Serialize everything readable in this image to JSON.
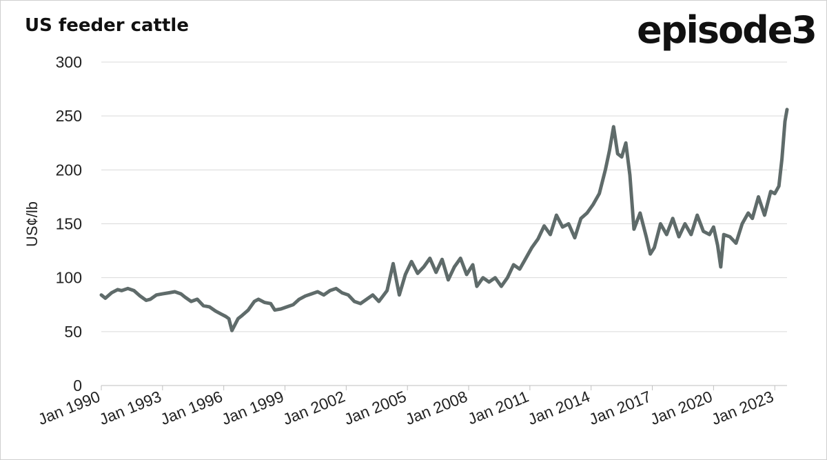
{
  "header": {
    "title": "US feeder cattle",
    "logo": "episode3"
  },
  "chart_data": {
    "type": "line",
    "title": "US feeder cattle",
    "xlabel": "",
    "ylabel": "US¢/lb",
    "xlim": [
      1990.0,
      2023.6
    ],
    "ylim": [
      0,
      300
    ],
    "yticks": [
      0,
      50,
      100,
      150,
      200,
      250,
      300
    ],
    "xtick_labels": [
      "Jan 1990",
      "Jan 1993",
      "Jan 1996",
      "Jan 1999",
      "Jan 2002",
      "Jan 2005",
      "Jan 2008",
      "Jan 2011",
      "Jan 2014",
      "Jan 2017",
      "Jan 2020",
      "Jan 2023"
    ],
    "xtick_years": [
      1990,
      1993,
      1996,
      1999,
      2002,
      2005,
      2008,
      2011,
      2014,
      2017,
      2020,
      2023
    ],
    "grid": "horizontal",
    "legend": "none",
    "series": [
      {
        "color": "#5f6b6a",
        "x": [
          1990.0,
          1990.2,
          1990.5,
          1990.8,
          1991.0,
          1991.3,
          1991.6,
          1991.9,
          1992.2,
          1992.4,
          1992.7,
          1993.0,
          1993.3,
          1993.6,
          1993.9,
          1994.1,
          1994.4,
          1994.7,
          1995.0,
          1995.3,
          1995.6,
          1995.9,
          1996.1,
          1996.25,
          1996.4,
          1996.7,
          1996.9,
          1997.2,
          1997.5,
          1997.7,
          1998.0,
          1998.3,
          1998.5,
          1998.8,
          1999.1,
          1999.4,
          1999.7,
          2000.0,
          2000.3,
          2000.6,
          2000.9,
          2001.2,
          2001.5,
          2001.8,
          2002.1,
          2002.4,
          2002.7,
          2003.0,
          2003.3,
          2003.6,
          2003.8,
          2004.0,
          2004.3,
          2004.6,
          2004.9,
          2005.2,
          2005.5,
          2005.8,
          2006.1,
          2006.4,
          2006.7,
          2007.0,
          2007.3,
          2007.6,
          2007.9,
          2008.2,
          2008.4,
          2008.7,
          2009.0,
          2009.3,
          2009.6,
          2009.9,
          2010.2,
          2010.5,
          2010.8,
          2011.1,
          2011.4,
          2011.7,
          2012.0,
          2012.3,
          2012.6,
          2012.9,
          2013.2,
          2013.5,
          2013.8,
          2014.1,
          2014.4,
          2014.7,
          2014.9,
          2015.1,
          2015.3,
          2015.5,
          2015.7,
          2015.9,
          2016.1,
          2016.4,
          2016.7,
          2016.9,
          2017.1,
          2017.4,
          2017.7,
          2018.0,
          2018.3,
          2018.6,
          2018.9,
          2019.2,
          2019.5,
          2019.8,
          2020.0,
          2020.2,
          2020.35,
          2020.5,
          2020.8,
          2021.1,
          2021.4,
          2021.7,
          2021.9,
          2022.2,
          2022.5,
          2022.8,
          2023.0,
          2023.2,
          2023.35,
          2023.5,
          2023.6
        ],
        "y": [
          84,
          81,
          86,
          89,
          88,
          90,
          88,
          83,
          79,
          80,
          84,
          85,
          86,
          87,
          85,
          82,
          78,
          80,
          74,
          73,
          69,
          66,
          64,
          62,
          51,
          62,
          65,
          70,
          78,
          80,
          77,
          76,
          70,
          71,
          73,
          75,
          80,
          83,
          85,
          87,
          84,
          88,
          90,
          86,
          84,
          78,
          76,
          80,
          84,
          78,
          83,
          88,
          113,
          84,
          103,
          115,
          104,
          110,
          118,
          105,
          117,
          98,
          110,
          118,
          103,
          112,
          92,
          100,
          96,
          100,
          92,
          100,
          112,
          108,
          118,
          128,
          136,
          148,
          140,
          158,
          147,
          150,
          137,
          155,
          160,
          168,
          178,
          200,
          218,
          240,
          215,
          212,
          225,
          195,
          145,
          160,
          138,
          122,
          128,
          150,
          140,
          155,
          138,
          150,
          140,
          158,
          143,
          140,
          147,
          130,
          110,
          140,
          138,
          132,
          150,
          160,
          155,
          175,
          158,
          180,
          178,
          185,
          210,
          245,
          256
        ]
      }
    ]
  }
}
